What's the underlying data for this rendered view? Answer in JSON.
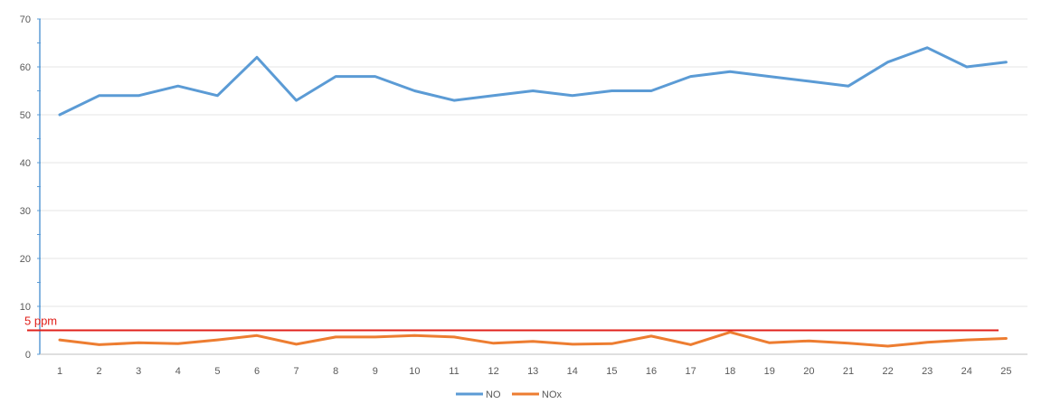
{
  "chart_data": {
    "type": "line",
    "title": "",
    "xlabel": "",
    "ylabel": "",
    "categories": [
      "1",
      "2",
      "3",
      "4",
      "5",
      "6",
      "7",
      "8",
      "9",
      "10",
      "11",
      "12",
      "13",
      "14",
      "15",
      "16",
      "17",
      "18",
      "19",
      "20",
      "21",
      "22",
      "23",
      "24",
      "25"
    ],
    "ylim": [
      0,
      70
    ],
    "yticks": [
      0,
      10,
      20,
      30,
      40,
      50,
      60,
      70
    ],
    "grid": true,
    "legend_position": "bottom",
    "series": [
      {
        "name": "NO",
        "color": "#5b9bd5",
        "values": [
          50,
          54,
          54,
          56,
          54,
          62,
          53,
          58,
          58,
          55,
          53,
          54,
          55,
          54,
          55,
          55,
          58,
          59,
          58,
          57,
          56,
          61,
          64,
          60,
          61
        ]
      },
      {
        "name": "NOx",
        "color": "#ed7d31",
        "values": [
          3.0,
          2.0,
          2.4,
          2.2,
          3.0,
          3.9,
          2.1,
          3.6,
          3.6,
          3.9,
          3.6,
          2.3,
          2.7,
          2.1,
          2.2,
          3.8,
          2.0,
          4.6,
          2.4,
          2.8,
          2.3,
          1.7,
          2.5,
          3.0,
          3.3
        ]
      }
    ],
    "reference_line": {
      "label": "5 ppm",
      "value": 5,
      "color": "#e0201b"
    },
    "axis_color": "#5b9bd5",
    "grid_color": "#e6e6e6"
  }
}
